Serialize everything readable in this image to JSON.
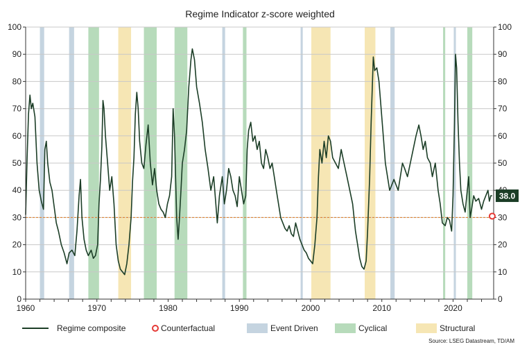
{
  "chart_data": {
    "type": "line",
    "title": "Regime Indicator z-score weighted",
    "source": "Source: LSEG Datastream, TD/AM",
    "xlim": [
      1960,
      2025.7
    ],
    "ylim": [
      0,
      100
    ],
    "x_ticks": [
      "1960",
      "1970",
      "1980",
      "1990",
      "2000",
      "2010",
      "2020"
    ],
    "x_tick_values": [
      1960,
      1970,
      1980,
      1990,
      2000,
      2010,
      2020
    ],
    "y_ticks": [
      "0",
      "10",
      "20",
      "30",
      "40",
      "50",
      "60",
      "70",
      "80",
      "90",
      "100"
    ],
    "y_tick_values": [
      0,
      10,
      20,
      30,
      40,
      50,
      60,
      70,
      80,
      90,
      100
    ],
    "grid": "horizontal",
    "legend_position": "bottom",
    "last_value_label": "38.0",
    "last_value": 38.0,
    "threshold": 30,
    "colors": {
      "line": "#1b3d26",
      "event": "#c5d4e0",
      "cyclical": "#b7dbbb",
      "structural": "#f6e6b4",
      "threshold": "#e07a1f",
      "counterfactual": "#e53935",
      "grid": "#c8c8c8",
      "badge": "#1b3d26"
    },
    "legend": [
      {
        "key": "line",
        "label": "Regime composite"
      },
      {
        "key": "counterfactual",
        "label": "Counterfactual"
      },
      {
        "key": "event",
        "label": "Event Driven"
      },
      {
        "key": "cyclical",
        "label": "Cyclical"
      },
      {
        "key": "structural",
        "label": "Structural"
      }
    ],
    "regimes": [
      {
        "type": "event",
        "start": 1962.0,
        "end": 1962.6
      },
      {
        "type": "event",
        "start": 1966.1,
        "end": 1966.8
      },
      {
        "type": "cyclical",
        "start": 1968.8,
        "end": 1970.3
      },
      {
        "type": "structural",
        "start": 1973.0,
        "end": 1974.8
      },
      {
        "type": "cyclical",
        "start": 1976.6,
        "end": 1978.4
      },
      {
        "type": "cyclical",
        "start": 1980.9,
        "end": 1982.7
      },
      {
        "type": "event",
        "start": 1987.6,
        "end": 1988.0
      },
      {
        "type": "cyclical",
        "start": 1990.5,
        "end": 1991.0
      },
      {
        "type": "event",
        "start": 1998.6,
        "end": 1998.9
      },
      {
        "type": "structural",
        "start": 2000.1,
        "end": 2002.8
      },
      {
        "type": "structural",
        "start": 2007.6,
        "end": 2009.1
      },
      {
        "type": "event",
        "start": 2011.2,
        "end": 2011.8
      },
      {
        "type": "cyclical",
        "start": 2018.6,
        "end": 2018.9
      },
      {
        "type": "event",
        "start": 2020.1,
        "end": 2020.4
      },
      {
        "type": "cyclical",
        "start": 2022.0,
        "end": 2022.7
      }
    ],
    "counterfactual_point": {
      "x": 2025.5,
      "y": 30.5
    },
    "series": [
      {
        "name": "Regime composite",
        "points": [
          [
            1960.0,
            31
          ],
          [
            1960.2,
            52
          ],
          [
            1960.4,
            68
          ],
          [
            1960.6,
            75
          ],
          [
            1960.8,
            70
          ],
          [
            1961.0,
            72
          ],
          [
            1961.3,
            67
          ],
          [
            1961.6,
            50
          ],
          [
            1961.9,
            40
          ],
          [
            1962.2,
            36
          ],
          [
            1962.5,
            33
          ],
          [
            1962.7,
            55
          ],
          [
            1962.9,
            58
          ],
          [
            1963.1,
            50
          ],
          [
            1963.4,
            43
          ],
          [
            1963.7,
            40
          ],
          [
            1964.0,
            34
          ],
          [
            1964.3,
            28
          ],
          [
            1964.6,
            25
          ],
          [
            1965.0,
            20
          ],
          [
            1965.4,
            17
          ],
          [
            1965.8,
            13
          ],
          [
            1966.1,
            17
          ],
          [
            1966.5,
            18
          ],
          [
            1966.9,
            16
          ],
          [
            1967.2,
            25
          ],
          [
            1967.5,
            38
          ],
          [
            1967.7,
            44
          ],
          [
            1967.9,
            30
          ],
          [
            1968.2,
            22
          ],
          [
            1968.5,
            18
          ],
          [
            1968.8,
            16
          ],
          [
            1969.2,
            18
          ],
          [
            1969.5,
            15
          ],
          [
            1969.8,
            16
          ],
          [
            1970.1,
            20
          ],
          [
            1970.3,
            35
          ],
          [
            1970.5,
            44
          ],
          [
            1970.7,
            56
          ],
          [
            1970.85,
            73
          ],
          [
            1971.0,
            70
          ],
          [
            1971.2,
            60
          ],
          [
            1971.5,
            50
          ],
          [
            1971.8,
            40
          ],
          [
            1972.1,
            45
          ],
          [
            1972.4,
            35
          ],
          [
            1972.7,
            20
          ],
          [
            1973.0,
            14
          ],
          [
            1973.3,
            11
          ],
          [
            1973.6,
            10
          ],
          [
            1973.9,
            9
          ],
          [
            1974.2,
            13
          ],
          [
            1974.5,
            20
          ],
          [
            1974.8,
            30
          ],
          [
            1975.0,
            43
          ],
          [
            1975.2,
            52
          ],
          [
            1975.4,
            68
          ],
          [
            1975.6,
            76
          ],
          [
            1975.8,
            70
          ],
          [
            1976.0,
            58
          ],
          [
            1976.3,
            50
          ],
          [
            1976.6,
            48
          ],
          [
            1976.9,
            57
          ],
          [
            1977.2,
            64
          ],
          [
            1977.5,
            50
          ],
          [
            1977.8,
            42
          ],
          [
            1978.1,
            48
          ],
          [
            1978.4,
            40
          ],
          [
            1978.7,
            35
          ],
          [
            1979.0,
            33
          ],
          [
            1979.3,
            32
          ],
          [
            1979.6,
            30
          ],
          [
            1979.9,
            35
          ],
          [
            1980.2,
            38
          ],
          [
            1980.5,
            45
          ],
          [
            1980.7,
            70
          ],
          [
            1980.9,
            60
          ],
          [
            1981.2,
            30
          ],
          [
            1981.4,
            22
          ],
          [
            1981.6,
            30
          ],
          [
            1981.8,
            40
          ],
          [
            1982.0,
            50
          ],
          [
            1982.3,
            55
          ],
          [
            1982.6,
            62
          ],
          [
            1982.9,
            78
          ],
          [
            1983.2,
            88
          ],
          [
            1983.4,
            92
          ],
          [
            1983.7,
            88
          ],
          [
            1984.0,
            78
          ],
          [
            1984.4,
            72
          ],
          [
            1984.8,
            65
          ],
          [
            1985.2,
            55
          ],
          [
            1985.6,
            48
          ],
          [
            1986.0,
            40
          ],
          [
            1986.4,
            45
          ],
          [
            1986.7,
            35
          ],
          [
            1986.9,
            28
          ],
          [
            1987.2,
            38
          ],
          [
            1987.6,
            45
          ],
          [
            1987.9,
            35
          ],
          [
            1988.2,
            40
          ],
          [
            1988.5,
            48
          ],
          [
            1988.8,
            45
          ],
          [
            1989.1,
            40
          ],
          [
            1989.4,
            38
          ],
          [
            1989.7,
            34
          ],
          [
            1990.0,
            45
          ],
          [
            1990.3,
            40
          ],
          [
            1990.6,
            35
          ],
          [
            1990.9,
            38
          ],
          [
            1991.1,
            55
          ],
          [
            1991.3,
            62
          ],
          [
            1991.6,
            65
          ],
          [
            1991.9,
            58
          ],
          [
            1992.2,
            60
          ],
          [
            1992.5,
            55
          ],
          [
            1992.8,
            58
          ],
          [
            1993.1,
            50
          ],
          [
            1993.4,
            48
          ],
          [
            1993.7,
            55
          ],
          [
            1994.0,
            52
          ],
          [
            1994.3,
            48
          ],
          [
            1994.6,
            50
          ],
          [
            1994.9,
            45
          ],
          [
            1995.2,
            40
          ],
          [
            1995.5,
            35
          ],
          [
            1995.8,
            30
          ],
          [
            1996.1,
            28
          ],
          [
            1996.4,
            26
          ],
          [
            1996.7,
            25
          ],
          [
            1997.0,
            27
          ],
          [
            1997.3,
            24
          ],
          [
            1997.6,
            23
          ],
          [
            1997.9,
            28
          ],
          [
            1998.2,
            25
          ],
          [
            1998.5,
            22
          ],
          [
            1998.8,
            20
          ],
          [
            1999.1,
            18
          ],
          [
            1999.4,
            17
          ],
          [
            1999.7,
            15
          ],
          [
            2000.0,
            14
          ],
          [
            2000.3,
            13
          ],
          [
            2000.6,
            20
          ],
          [
            2000.9,
            30
          ],
          [
            2001.1,
            45
          ],
          [
            2001.3,
            55
          ],
          [
            2001.6,
            50
          ],
          [
            2001.9,
            58
          ],
          [
            2002.2,
            52
          ],
          [
            2002.5,
            60
          ],
          [
            2002.8,
            58
          ],
          [
            2003.1,
            52
          ],
          [
            2003.5,
            50
          ],
          [
            2003.9,
            48
          ],
          [
            2004.3,
            55
          ],
          [
            2004.7,
            50
          ],
          [
            2005.1,
            45
          ],
          [
            2005.5,
            40
          ],
          [
            2005.9,
            35
          ],
          [
            2006.3,
            25
          ],
          [
            2006.6,
            20
          ],
          [
            2006.9,
            15
          ],
          [
            2007.2,
            12
          ],
          [
            2007.5,
            11
          ],
          [
            2007.8,
            14
          ],
          [
            2008.0,
            25
          ],
          [
            2008.3,
            45
          ],
          [
            2008.5,
            65
          ],
          [
            2008.8,
            89
          ],
          [
            2009.0,
            84
          ],
          [
            2009.3,
            85
          ],
          [
            2009.6,
            80
          ],
          [
            2009.9,
            70
          ],
          [
            2010.2,
            60
          ],
          [
            2010.5,
            50
          ],
          [
            2010.8,
            45
          ],
          [
            2011.1,
            40
          ],
          [
            2011.4,
            42
          ],
          [
            2011.7,
            44
          ],
          [
            2012.0,
            42
          ],
          [
            2012.3,
            40
          ],
          [
            2012.6,
            45
          ],
          [
            2012.9,
            50
          ],
          [
            2013.2,
            48
          ],
          [
            2013.6,
            45
          ],
          [
            2014.0,
            50
          ],
          [
            2014.4,
            55
          ],
          [
            2014.8,
            60
          ],
          [
            2015.2,
            64
          ],
          [
            2015.5,
            60
          ],
          [
            2015.8,
            55
          ],
          [
            2016.1,
            58
          ],
          [
            2016.4,
            52
          ],
          [
            2016.8,
            50
          ],
          [
            2017.1,
            45
          ],
          [
            2017.5,
            50
          ],
          [
            2017.9,
            40
          ],
          [
            2018.2,
            35
          ],
          [
            2018.5,
            28
          ],
          [
            2018.9,
            27
          ],
          [
            2019.2,
            30
          ],
          [
            2019.5,
            29
          ],
          [
            2019.8,
            25
          ],
          [
            2020.0,
            38
          ],
          [
            2020.2,
            65
          ],
          [
            2020.35,
            90
          ],
          [
            2020.5,
            85
          ],
          [
            2020.7,
            65
          ],
          [
            2020.9,
            50
          ],
          [
            2021.1,
            40
          ],
          [
            2021.4,
            35
          ],
          [
            2021.7,
            32
          ],
          [
            2022.0,
            40
          ],
          [
            2022.2,
            45
          ],
          [
            2022.4,
            30
          ],
          [
            2022.6,
            33
          ],
          [
            2022.9,
            38
          ],
          [
            2023.2,
            36
          ],
          [
            2023.6,
            37
          ],
          [
            2024.0,
            33
          ],
          [
            2024.3,
            36
          ],
          [
            2024.6,
            38
          ],
          [
            2024.9,
            40
          ],
          [
            2025.1,
            36
          ],
          [
            2025.3,
            38
          ],
          [
            2025.5,
            38
          ]
        ]
      }
    ]
  }
}
